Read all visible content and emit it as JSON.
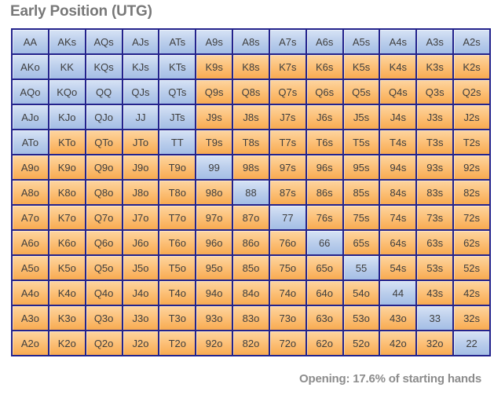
{
  "chart_data": {
    "type": "heatmap",
    "title": "Early Position (UTG)",
    "caption": "Opening: 17.6% of starting hands",
    "x_categories": [
      "A",
      "K",
      "Q",
      "J",
      "T",
      "9",
      "8",
      "7",
      "6",
      "5",
      "4",
      "3",
      "2"
    ],
    "y_categories": [
      "A",
      "K",
      "Q",
      "J",
      "T",
      "9",
      "8",
      "7",
      "6",
      "5",
      "4",
      "3",
      "2"
    ],
    "rows": [
      [
        {
          "h": "AA",
          "r": true
        },
        {
          "h": "AKs",
          "r": true
        },
        {
          "h": "AQs",
          "r": true
        },
        {
          "h": "AJs",
          "r": true
        },
        {
          "h": "ATs",
          "r": true
        },
        {
          "h": "A9s",
          "r": true
        },
        {
          "h": "A8s",
          "r": true
        },
        {
          "h": "A7s",
          "r": true
        },
        {
          "h": "A6s",
          "r": true
        },
        {
          "h": "A5s",
          "r": true
        },
        {
          "h": "A4s",
          "r": true
        },
        {
          "h": "A3s",
          "r": true
        },
        {
          "h": "A2s",
          "r": true
        }
      ],
      [
        {
          "h": "AKo",
          "r": true
        },
        {
          "h": "KK",
          "r": true
        },
        {
          "h": "KQs",
          "r": true
        },
        {
          "h": "KJs",
          "r": true
        },
        {
          "h": "KTs",
          "r": true
        },
        {
          "h": "K9s",
          "r": false
        },
        {
          "h": "K8s",
          "r": false
        },
        {
          "h": "K7s",
          "r": false
        },
        {
          "h": "K6s",
          "r": false
        },
        {
          "h": "K5s",
          "r": false
        },
        {
          "h": "K4s",
          "r": false
        },
        {
          "h": "K3s",
          "r": false
        },
        {
          "h": "K2s",
          "r": false
        }
      ],
      [
        {
          "h": "AQo",
          "r": true
        },
        {
          "h": "KQo",
          "r": true
        },
        {
          "h": "QQ",
          "r": true
        },
        {
          "h": "QJs",
          "r": true
        },
        {
          "h": "QTs",
          "r": true
        },
        {
          "h": "Q9s",
          "r": false
        },
        {
          "h": "Q8s",
          "r": false
        },
        {
          "h": "Q7s",
          "r": false
        },
        {
          "h": "Q6s",
          "r": false
        },
        {
          "h": "Q5s",
          "r": false
        },
        {
          "h": "Q4s",
          "r": false
        },
        {
          "h": "Q3s",
          "r": false
        },
        {
          "h": "Q2s",
          "r": false
        }
      ],
      [
        {
          "h": "AJo",
          "r": true
        },
        {
          "h": "KJo",
          "r": true
        },
        {
          "h": "QJo",
          "r": true
        },
        {
          "h": "JJ",
          "r": true
        },
        {
          "h": "JTs",
          "r": true
        },
        {
          "h": "J9s",
          "r": false
        },
        {
          "h": "J8s",
          "r": false
        },
        {
          "h": "J7s",
          "r": false
        },
        {
          "h": "J6s",
          "r": false
        },
        {
          "h": "J5s",
          "r": false
        },
        {
          "h": "J4s",
          "r": false
        },
        {
          "h": "J3s",
          "r": false
        },
        {
          "h": "J2s",
          "r": false
        }
      ],
      [
        {
          "h": "ATo",
          "r": true
        },
        {
          "h": "KTo",
          "r": false
        },
        {
          "h": "QTo",
          "r": false
        },
        {
          "h": "JTo",
          "r": false
        },
        {
          "h": "TT",
          "r": true
        },
        {
          "h": "T9s",
          "r": false
        },
        {
          "h": "T8s",
          "r": false
        },
        {
          "h": "T7s",
          "r": false
        },
        {
          "h": "T6s",
          "r": false
        },
        {
          "h": "T5s",
          "r": false
        },
        {
          "h": "T4s",
          "r": false
        },
        {
          "h": "T3s",
          "r": false
        },
        {
          "h": "T2s",
          "r": false
        }
      ],
      [
        {
          "h": "A9o",
          "r": false
        },
        {
          "h": "K9o",
          "r": false
        },
        {
          "h": "Q9o",
          "r": false
        },
        {
          "h": "J9o",
          "r": false
        },
        {
          "h": "T9o",
          "r": false
        },
        {
          "h": "99",
          "r": true
        },
        {
          "h": "98s",
          "r": false
        },
        {
          "h": "97s",
          "r": false
        },
        {
          "h": "96s",
          "r": false
        },
        {
          "h": "95s",
          "r": false
        },
        {
          "h": "94s",
          "r": false
        },
        {
          "h": "93s",
          "r": false
        },
        {
          "h": "92s",
          "r": false
        }
      ],
      [
        {
          "h": "A8o",
          "r": false
        },
        {
          "h": "K8o",
          "r": false
        },
        {
          "h": "Q8o",
          "r": false
        },
        {
          "h": "J8o",
          "r": false
        },
        {
          "h": "T8o",
          "r": false
        },
        {
          "h": "98o",
          "r": false
        },
        {
          "h": "88",
          "r": true
        },
        {
          "h": "87s",
          "r": false
        },
        {
          "h": "86s",
          "r": false
        },
        {
          "h": "85s",
          "r": false
        },
        {
          "h": "84s",
          "r": false
        },
        {
          "h": "83s",
          "r": false
        },
        {
          "h": "82s",
          "r": false
        }
      ],
      [
        {
          "h": "A7o",
          "r": false
        },
        {
          "h": "K7o",
          "r": false
        },
        {
          "h": "Q7o",
          "r": false
        },
        {
          "h": "J7o",
          "r": false
        },
        {
          "h": "T7o",
          "r": false
        },
        {
          "h": "97o",
          "r": false
        },
        {
          "h": "87o",
          "r": false
        },
        {
          "h": "77",
          "r": true
        },
        {
          "h": "76s",
          "r": false
        },
        {
          "h": "75s",
          "r": false
        },
        {
          "h": "74s",
          "r": false
        },
        {
          "h": "73s",
          "r": false
        },
        {
          "h": "72s",
          "r": false
        }
      ],
      [
        {
          "h": "A6o",
          "r": false
        },
        {
          "h": "K6o",
          "r": false
        },
        {
          "h": "Q6o",
          "r": false
        },
        {
          "h": "J6o",
          "r": false
        },
        {
          "h": "T6o",
          "r": false
        },
        {
          "h": "96o",
          "r": false
        },
        {
          "h": "86o",
          "r": false
        },
        {
          "h": "76o",
          "r": false
        },
        {
          "h": "66",
          "r": true
        },
        {
          "h": "65s",
          "r": false
        },
        {
          "h": "64s",
          "r": false
        },
        {
          "h": "63s",
          "r": false
        },
        {
          "h": "62s",
          "r": false
        }
      ],
      [
        {
          "h": "A5o",
          "r": false
        },
        {
          "h": "K5o",
          "r": false
        },
        {
          "h": "Q5o",
          "r": false
        },
        {
          "h": "J5o",
          "r": false
        },
        {
          "h": "T5o",
          "r": false
        },
        {
          "h": "95o",
          "r": false
        },
        {
          "h": "85o",
          "r": false
        },
        {
          "h": "75o",
          "r": false
        },
        {
          "h": "65o",
          "r": false
        },
        {
          "h": "55",
          "r": true
        },
        {
          "h": "54s",
          "r": false
        },
        {
          "h": "53s",
          "r": false
        },
        {
          "h": "52s",
          "r": false
        }
      ],
      [
        {
          "h": "A4o",
          "r": false
        },
        {
          "h": "K4o",
          "r": false
        },
        {
          "h": "Q4o",
          "r": false
        },
        {
          "h": "J4o",
          "r": false
        },
        {
          "h": "T4o",
          "r": false
        },
        {
          "h": "94o",
          "r": false
        },
        {
          "h": "84o",
          "r": false
        },
        {
          "h": "74o",
          "r": false
        },
        {
          "h": "64o",
          "r": false
        },
        {
          "h": "54o",
          "r": false
        },
        {
          "h": "44",
          "r": true
        },
        {
          "h": "43s",
          "r": false
        },
        {
          "h": "42s",
          "r": false
        }
      ],
      [
        {
          "h": "A3o",
          "r": false
        },
        {
          "h": "K3o",
          "r": false
        },
        {
          "h": "Q3o",
          "r": false
        },
        {
          "h": "J3o",
          "r": false
        },
        {
          "h": "T3o",
          "r": false
        },
        {
          "h": "93o",
          "r": false
        },
        {
          "h": "83o",
          "r": false
        },
        {
          "h": "73o",
          "r": false
        },
        {
          "h": "63o",
          "r": false
        },
        {
          "h": "53o",
          "r": false
        },
        {
          "h": "43o",
          "r": false
        },
        {
          "h": "33",
          "r": true
        },
        {
          "h": "32s",
          "r": false
        }
      ],
      [
        {
          "h": "A2o",
          "r": false
        },
        {
          "h": "K2o",
          "r": false
        },
        {
          "h": "Q2o",
          "r": false
        },
        {
          "h": "J2o",
          "r": false
        },
        {
          "h": "T2o",
          "r": false
        },
        {
          "h": "92o",
          "r": false
        },
        {
          "h": "82o",
          "r": false
        },
        {
          "h": "72o",
          "r": false
        },
        {
          "h": "62o",
          "r": false
        },
        {
          "h": "52o",
          "r": false
        },
        {
          "h": "42o",
          "r": false
        },
        {
          "h": "32o",
          "r": false
        },
        {
          "h": "22",
          "r": true
        }
      ]
    ]
  },
  "colors": {
    "in_range_top": "#d7e3f5",
    "in_range_mid": "#bccfec",
    "in_range_bottom": "#a4bee5",
    "out_top": "#fdd5a0",
    "out_mid": "#fcc179",
    "out_bottom": "#f8ab51",
    "grid_border": "#23238c",
    "cell_text": "#3e3e3e",
    "title_text": "#787878",
    "caption_text": "#8c8c8c"
  }
}
